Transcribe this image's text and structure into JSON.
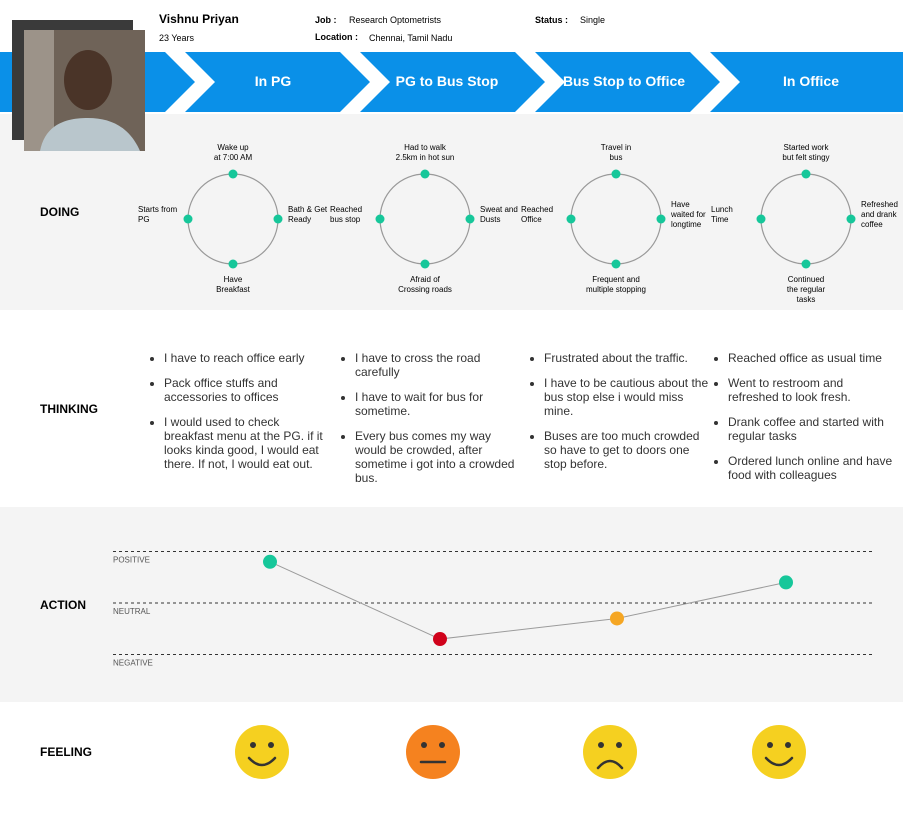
{
  "profile": {
    "name": "Vishnu Priyan",
    "age": "23 Years",
    "job_label": "Job :",
    "job": "Research Optometrists",
    "location_label": "Location :",
    "location": "Chennai, Tamil Nadu",
    "status_label": "Status :",
    "status": "Single"
  },
  "stages": [
    "In PG",
    "PG to Bus Stop",
    "Bus Stop to Office",
    "In Office"
  ],
  "rows": {
    "doing": "DOING",
    "thinking": "THINKING",
    "action": "ACTION",
    "feeling": "FEELING"
  },
  "doing": [
    {
      "top": [
        "Wake up",
        "at 7:00 AM"
      ],
      "left": [
        "Starts from",
        "PG"
      ],
      "right": [
        "Bath & Get",
        "Ready"
      ],
      "bottom": [
        "Have",
        "Breakfast"
      ]
    },
    {
      "top": [
        "Had to walk",
        "2.5km in hot sun"
      ],
      "left": [
        "Reached",
        "bus stop"
      ],
      "right": [
        "Sweat and",
        "Dusts"
      ],
      "bottom": [
        "Afraid of",
        "Crossing roads"
      ]
    },
    {
      "top": [
        "Travel in",
        "bus"
      ],
      "left": [
        "Reached",
        "Office"
      ],
      "right": [
        "Have",
        "waited for",
        "longtime"
      ],
      "bottom": [
        "Frequent and",
        "multiple stopping"
      ]
    },
    {
      "top": [
        "Started work",
        "but felt stingy"
      ],
      "left": [
        "Lunch",
        "Time"
      ],
      "right": [
        "Refreshed",
        "and drank",
        "coffee"
      ],
      "bottom": [
        "Continued",
        "the regular",
        "tasks"
      ]
    }
  ],
  "thinking": [
    [
      "I have to reach office early",
      "Pack office stuffs and accessories to offices",
      "I would used to check breakfast menu at the PG. if it looks kinda good, I would eat there. If not, I would eat out."
    ],
    [
      "I have to cross the road carefully",
      "I have to wait for bus for sometime.",
      "Every bus comes my way would be crowded, after sometime i got into a crowded bus."
    ],
    [
      "Frustrated about the traffic.",
      "I have to be cautious about the bus stop else i would miss mine.",
      "Buses are too much crowded so have to get to doors one stop before."
    ],
    [
      "Reached office as usual time",
      "Went to restroom and refreshed to look fresh.",
      "Drank coffee and started with regular tasks",
      "Ordered lunch online and have food with colleagues"
    ]
  ],
  "action": {
    "levels": [
      {
        "label": "POSITIVE",
        "value": 1
      },
      {
        "label": "NEUTRAL",
        "value": 0
      },
      {
        "label": "NEGATIVE",
        "value": -1
      }
    ],
    "values": [
      0.8,
      -0.7,
      -0.3,
      0.4
    ],
    "colors": [
      "#16c79a",
      "#d0021b",
      "#f5a623",
      "#16c79a"
    ],
    "line_color": "#9b9b9b"
  },
  "feeling": {
    "faces": [
      {
        "color": "#f5d020",
        "mouth": "smile"
      },
      {
        "color": "#f5821f",
        "mouth": "flat"
      },
      {
        "color": "#f5d020",
        "mouth": "frown"
      },
      {
        "color": "#f5d020",
        "mouth": "smile"
      }
    ]
  }
}
